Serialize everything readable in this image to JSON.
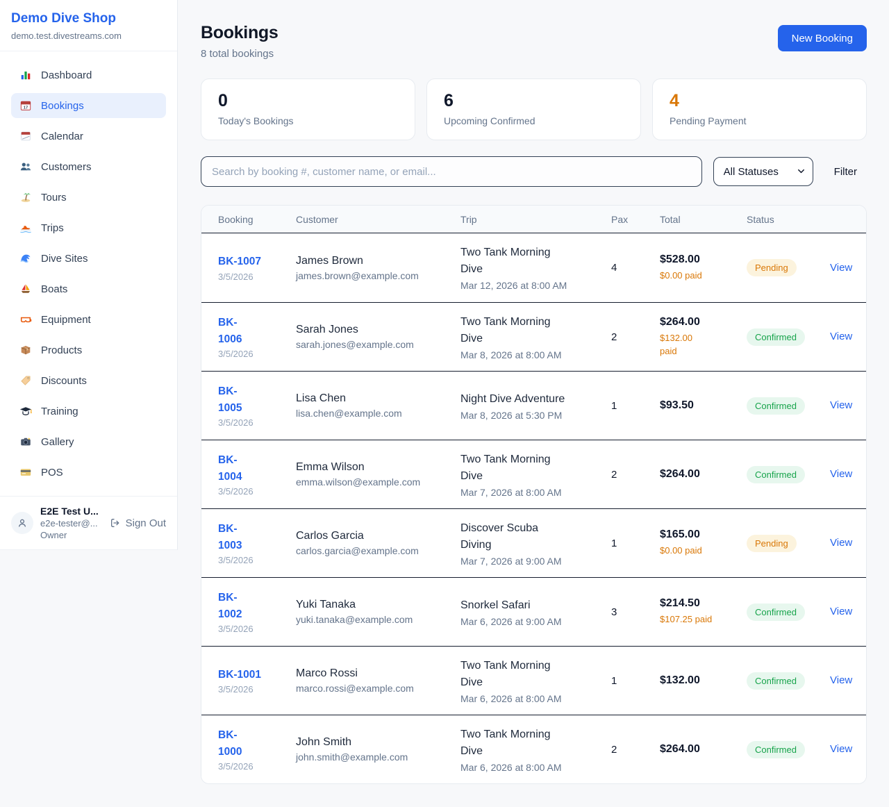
{
  "sidebar": {
    "brand": {
      "name": "Demo Dive Shop",
      "domain": "demo.test.divestreams.com"
    },
    "items": [
      {
        "label": "Dashboard",
        "icon": "bar-chart-icon",
        "active": false
      },
      {
        "label": "Bookings",
        "icon": "bookings-calendar-icon",
        "active": true
      },
      {
        "label": "Calendar",
        "icon": "calendar-icon",
        "active": false
      },
      {
        "label": "Customers",
        "icon": "users-icon",
        "active": false
      },
      {
        "label": "Tours",
        "icon": "island-icon",
        "active": false
      },
      {
        "label": "Trips",
        "icon": "speedboat-icon",
        "active": false
      },
      {
        "label": "Dive Sites",
        "icon": "wave-icon",
        "active": false
      },
      {
        "label": "Boats",
        "icon": "sailboat-icon",
        "active": false
      },
      {
        "label": "Equipment",
        "icon": "diving-mask-icon",
        "active": false
      },
      {
        "label": "Products",
        "icon": "package-icon",
        "active": false
      },
      {
        "label": "Discounts",
        "icon": "tag-icon",
        "active": false
      },
      {
        "label": "Training",
        "icon": "graduation-cap-icon",
        "active": false
      },
      {
        "label": "Gallery",
        "icon": "camera-icon",
        "active": false
      },
      {
        "label": "POS",
        "icon": "credit-card-icon",
        "active": false
      }
    ],
    "user": {
      "name": "E2E Test U...",
      "email": "e2e-tester@...",
      "role": "Owner",
      "sign_out_label": "Sign Out"
    }
  },
  "header": {
    "title": "Bookings",
    "subtitle": "8 total bookings",
    "new_booking_label": "New Booking"
  },
  "stats": [
    {
      "value": "0",
      "label": "Today's Bookings",
      "color": "#0f172a"
    },
    {
      "value": "6",
      "label": "Upcoming Confirmed",
      "color": "#0f172a"
    },
    {
      "value": "4",
      "label": "Pending Payment",
      "color": "#d97706"
    }
  ],
  "controls": {
    "search_placeholder": "Search by booking #, customer name, or email...",
    "status_filter_value": "All Statuses",
    "filter_label": "Filter"
  },
  "table": {
    "columns": [
      "Booking",
      "Customer",
      "Trip",
      "Pax",
      "Total",
      "Status"
    ],
    "view_label": "View",
    "rows": [
      {
        "id": "BK-1007",
        "created": "3/5/2026",
        "customer_name": "James Brown",
        "customer_email": "james.brown@example.com",
        "trip_name": "Two Tank Morning\nDive",
        "trip_datetime": "Mar 12, 2026 at 8:00 AM",
        "pax": "4",
        "total": "$528.00",
        "paid": "$0.00 paid",
        "status": "Pending"
      },
      {
        "id": "BK-\n1006",
        "created": "3/5/2026",
        "customer_name": "Sarah Jones",
        "customer_email": "sarah.jones@example.com",
        "trip_name": "Two Tank Morning\nDive",
        "trip_datetime": "Mar 8, 2026 at 8:00 AM",
        "pax": "2",
        "total": "$264.00",
        "paid": "$132.00\npaid",
        "status": "Confirmed"
      },
      {
        "id": "BK-\n1005",
        "created": "3/5/2026",
        "customer_name": "Lisa Chen",
        "customer_email": "lisa.chen@example.com",
        "trip_name": "Night Dive Adventure",
        "trip_datetime": "Mar 8, 2026 at 5:30 PM",
        "pax": "1",
        "total": "$93.50",
        "paid": "",
        "status": "Confirmed"
      },
      {
        "id": "BK-\n1004",
        "created": "3/5/2026",
        "customer_name": "Emma Wilson",
        "customer_email": "emma.wilson@example.com",
        "trip_name": "Two Tank Morning\nDive",
        "trip_datetime": "Mar 7, 2026 at 8:00 AM",
        "pax": "2",
        "total": "$264.00",
        "paid": "",
        "status": "Confirmed"
      },
      {
        "id": "BK-\n1003",
        "created": "3/5/2026",
        "customer_name": "Carlos Garcia",
        "customer_email": "carlos.garcia@example.com",
        "trip_name": "Discover Scuba\nDiving",
        "trip_datetime": "Mar 7, 2026 at 9:00 AM",
        "pax": "1",
        "total": "$165.00",
        "paid": "$0.00 paid",
        "status": "Pending"
      },
      {
        "id": "BK-\n1002",
        "created": "3/5/2026",
        "customer_name": "Yuki Tanaka",
        "customer_email": "yuki.tanaka@example.com",
        "trip_name": "Snorkel Safari",
        "trip_datetime": "Mar 6, 2026 at 9:00 AM",
        "pax": "3",
        "total": "$214.50",
        "paid": "$107.25 paid",
        "status": "Confirmed"
      },
      {
        "id": "BK-1001",
        "created": "3/5/2026",
        "customer_name": "Marco Rossi",
        "customer_email": "marco.rossi@example.com",
        "trip_name": "Two Tank Morning\nDive",
        "trip_datetime": "Mar 6, 2026 at 8:00 AM",
        "pax": "1",
        "total": "$132.00",
        "paid": "",
        "status": "Confirmed"
      },
      {
        "id": "BK-\n1000",
        "created": "3/5/2026",
        "customer_name": "John Smith",
        "customer_email": "john.smith@example.com",
        "trip_name": "Two Tank Morning\nDive",
        "trip_datetime": "Mar 6, 2026 at 8:00 AM",
        "pax": "2",
        "total": "$264.00",
        "paid": "",
        "status": "Confirmed"
      }
    ]
  },
  "colors": {
    "accent_blue": "#2563eb",
    "pending_orange": "#d97706",
    "confirmed_green": "#16a34a"
  }
}
